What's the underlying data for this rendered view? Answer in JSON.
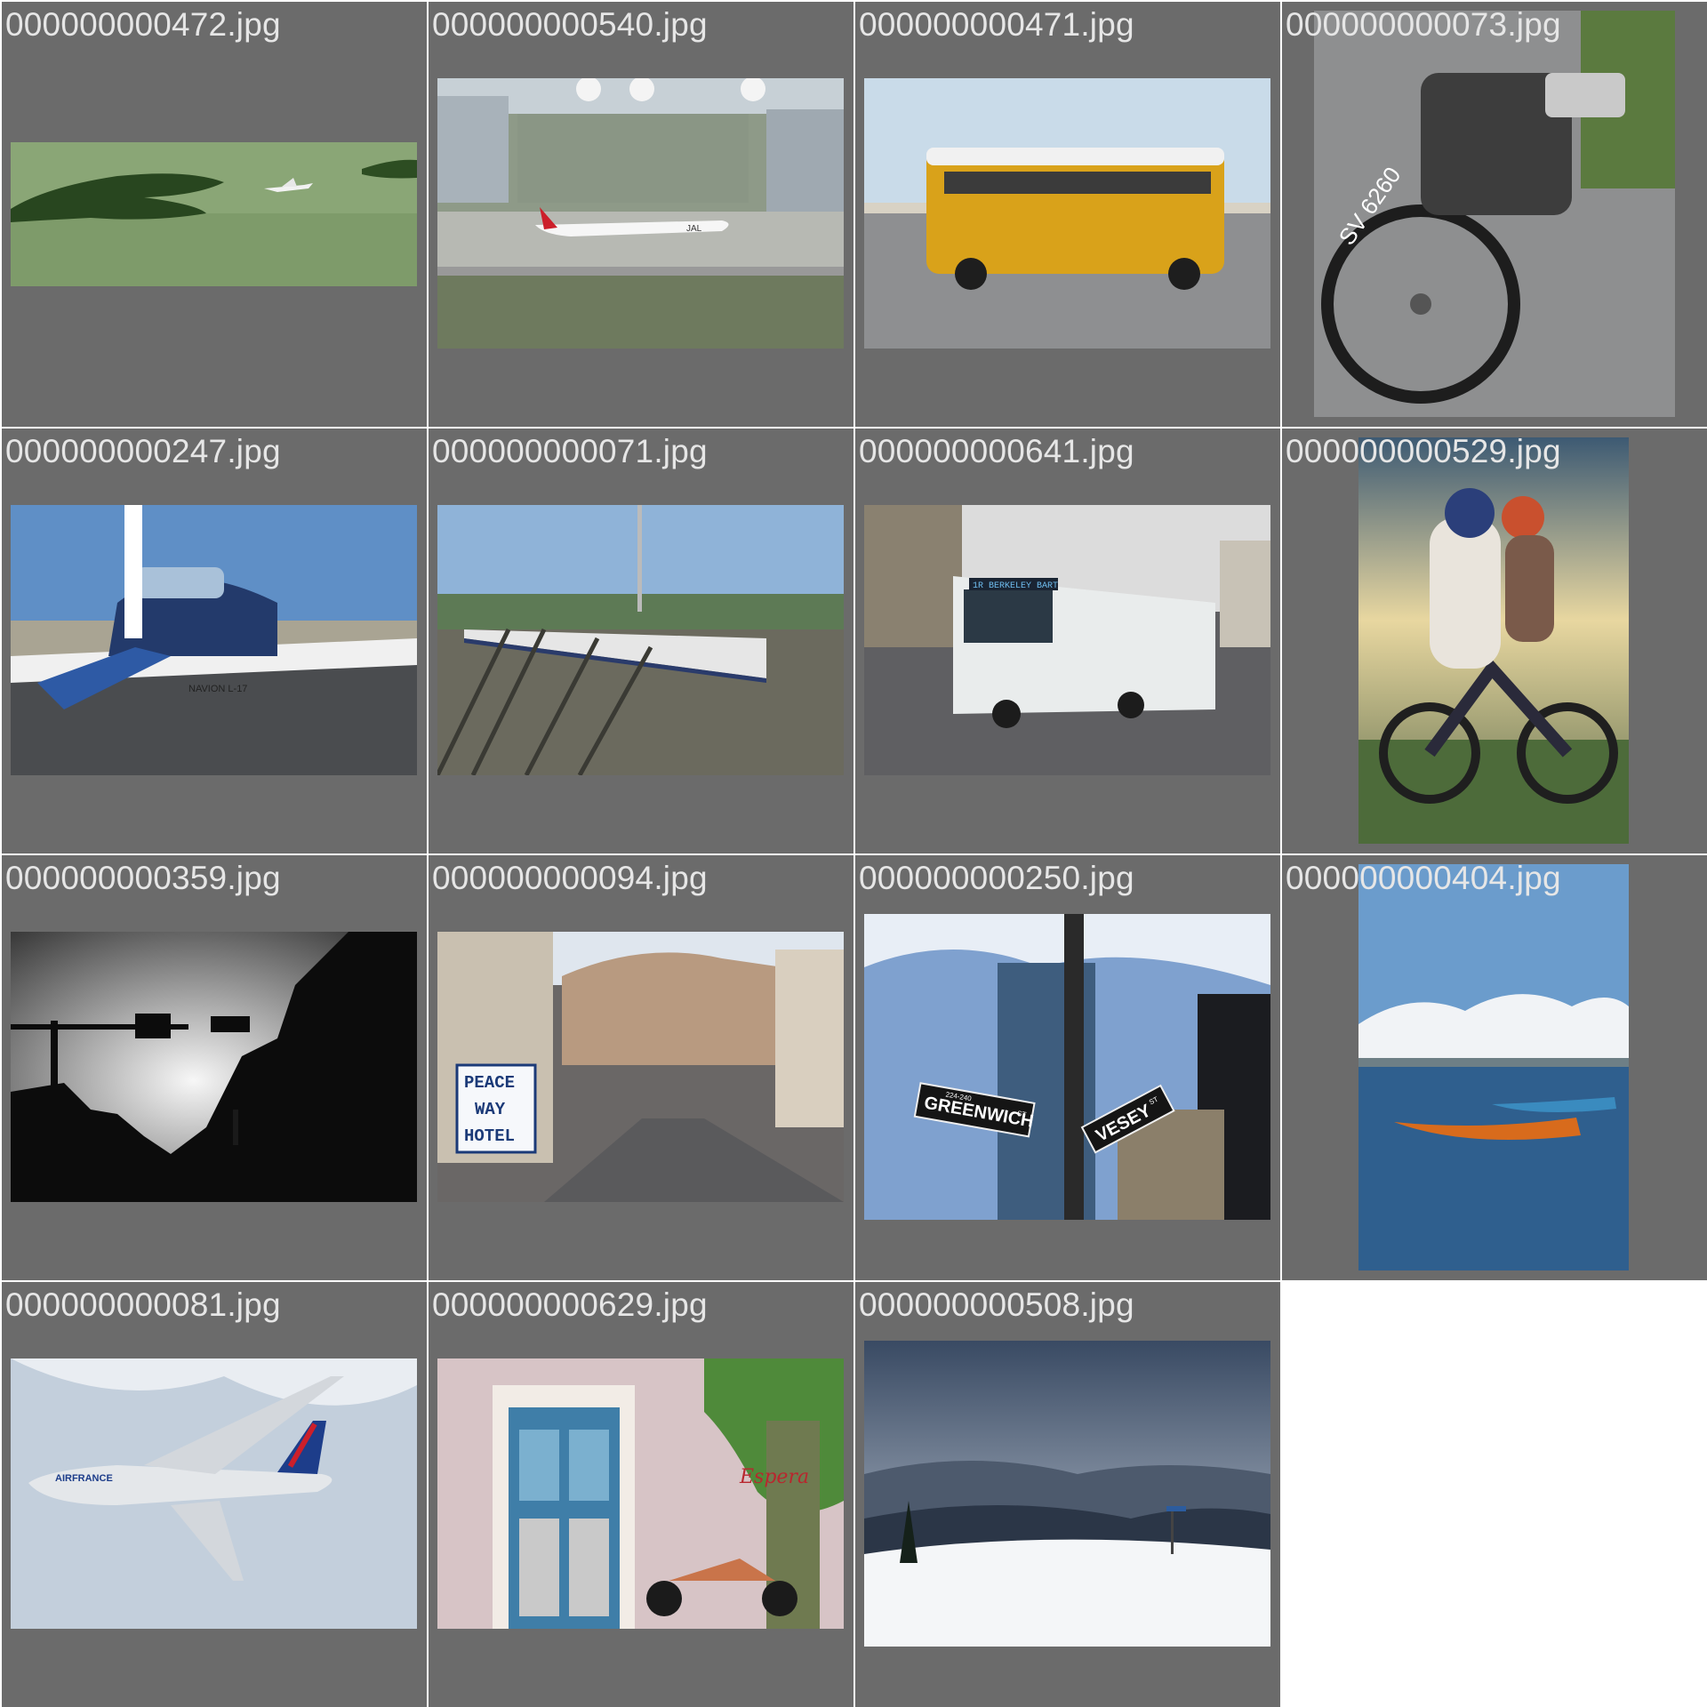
{
  "gallery": {
    "tiles": [
      {
        "filename": "000000000472.jpg",
        "subject": "airplane-over-green-water"
      },
      {
        "filename": "000000000540.jpg",
        "subject": "jal-jet-at-airport"
      },
      {
        "filename": "000000000471.jpg",
        "subject": "yellow-school-bus"
      },
      {
        "filename": "000000000073.jpg",
        "subject": "vintage-motorcycle"
      },
      {
        "filename": "000000000247.jpg",
        "subject": "small-propeller-airplane"
      },
      {
        "filename": "000000000071.jpg",
        "subject": "train-on-tracks"
      },
      {
        "filename": "000000000641.jpg",
        "subject": "articulated-city-bus"
      },
      {
        "filename": "000000000529.jpg",
        "subject": "couple-on-dirt-bike"
      },
      {
        "filename": "000000000359.jpg",
        "subject": "traffic-light-silhouette"
      },
      {
        "filename": "000000000094.jpg",
        "subject": "hillside-street-hotel-sign"
      },
      {
        "filename": "000000000250.jpg",
        "subject": "greenwich-vesey-street-signs"
      },
      {
        "filename": "000000000404.jpg",
        "subject": "boats-on-lagoon"
      },
      {
        "filename": "000000000081.jpg",
        "subject": "air-france-a380"
      },
      {
        "filename": "000000000629.jpg",
        "subject": "door-and-minibike"
      },
      {
        "filename": "000000000508.jpg",
        "subject": "snowy-mountain-overlook"
      }
    ],
    "sign_text": {
      "hotel_line1": "PEACE",
      "hotel_line2": "WAY",
      "hotel_line3": "HOTEL",
      "street_greenwich": "GREENWICH",
      "street_greenwich_suffix": "ST",
      "street_greenwich_numbers": "224-240",
      "street_vesey": "VESEY",
      "street_vesey_suffix": "ST",
      "bus_route": "1R BERKELEY BART",
      "plate": "SV 6260",
      "airline": "AIRFRANCE",
      "jal_logo": "JAL",
      "plane_tag": "NAVION L-17",
      "wall_script": "Espera"
    }
  }
}
